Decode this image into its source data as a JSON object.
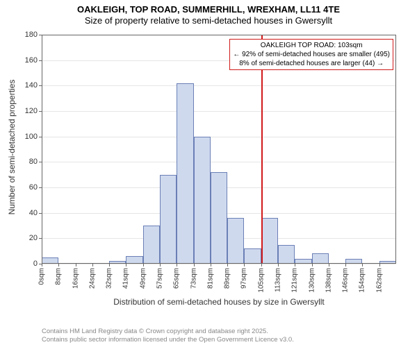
{
  "titles": {
    "line1": "OAKLEIGH, TOP ROAD, SUMMERHILL, WREXHAM, LL11 4TE",
    "line2": "Size of property relative to semi-detached houses in Gwersyllt"
  },
  "axes": {
    "y_label": "Number of semi-detached properties",
    "x_label": "Distribution of semi-detached houses by size in Gwersyllt",
    "y_min": 0,
    "y_max": 180,
    "y_tick_step": 20,
    "y_ticks": [
      0,
      20,
      40,
      60,
      80,
      100,
      120,
      140,
      160,
      180
    ],
    "x_ticks": [
      "0sqm",
      "8sqm",
      "16sqm",
      "24sqm",
      "32sqm",
      "41sqm",
      "49sqm",
      "57sqm",
      "65sqm",
      "73sqm",
      "81sqm",
      "89sqm",
      "97sqm",
      "105sqm",
      "113sqm",
      "121sqm",
      "130sqm",
      "138sqm",
      "146sqm",
      "154sqm",
      "162sqm"
    ]
  },
  "chart": {
    "type": "histogram",
    "bar_fill": "#cfd9ee",
    "bar_border": "#6a7fb5",
    "background_color": "#ffffff",
    "grid_color": "#e5e5e5",
    "plot_border_color": "#666666",
    "bar_width_ratio": 1.0,
    "values": [
      5,
      0,
      0,
      0,
      2,
      6,
      30,
      70,
      142,
      100,
      72,
      36,
      12,
      36,
      15,
      4,
      8,
      0,
      4,
      0,
      2
    ],
    "label_font_size_pt": 9,
    "axis_title_font_size_pt": 10
  },
  "reference": {
    "x_index": 13,
    "color": "#d11a1a",
    "line_width": 2
  },
  "callout": {
    "border_color": "#d11a1a",
    "background_color": "#ffffff",
    "lines": [
      "OAKLEIGH TOP ROAD: 103sqm",
      "← 92% of semi-detached houses are smaller (495)",
      "8% of semi-detached houses are larger (44) →"
    ],
    "font_size_pt": 8
  },
  "footer": {
    "line1": "Contains HM Land Registry data © Crown copyright and database right 2025.",
    "line2": "Contains public sector information licensed under the Open Government Licence v3.0."
  }
}
